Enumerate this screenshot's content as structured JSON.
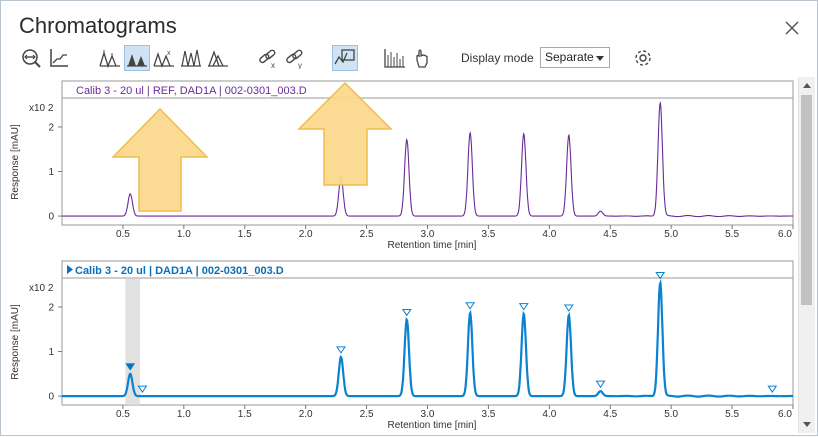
{
  "window": {
    "title": "Chromatograms"
  },
  "toolbar": {
    "icons": [
      "zoom-out-icon",
      "baseline-icon",
      "peaks-icon",
      "peaks-active-icon",
      "peaks-labeled-icon",
      "peaks-tall-icon",
      "peaks-overlay-icon",
      "link-x-icon",
      "link-y-icon",
      "compare-icon",
      "spectrum-icon",
      "hand-pointer-icon",
      "settings-icon"
    ],
    "display_mode_label": "Display mode",
    "display_mode_value": "Separate"
  },
  "colors": {
    "purple_trace": "#6a2a9a",
    "blue_trace": "#0a82d0",
    "arrow_fill": "#fbd98a",
    "arrow_stroke": "#f0b73c"
  },
  "chart_data": [
    {
      "type": "line",
      "title": "Calib 3 - 20 ul | REF, DAD1A | 002-0301_003.D",
      "xlabel": "Retention time [min]",
      "ylabel": "Response [mAU]",
      "multiplier": "x10 2",
      "x_ticks": [
        "0.5",
        "1.0",
        "1.5",
        "2.0",
        "2.5",
        "3.0",
        "3.5",
        "4.0",
        "4.5",
        "5.0",
        "5.5",
        "6.0"
      ],
      "y_ticks": [
        "0",
        "1",
        "2"
      ],
      "xlim": [
        0.0,
        6.0
      ],
      "ylim": [
        -0.2,
        2.65
      ],
      "peaks": [
        {
          "rt": 0.56,
          "height": 0.5
        },
        {
          "rt": 2.29,
          "height": 0.88
        },
        {
          "rt": 2.83,
          "height": 1.72
        },
        {
          "rt": 3.35,
          "height": 1.87
        },
        {
          "rt": 3.79,
          "height": 1.85
        },
        {
          "rt": 4.16,
          "height": 1.82
        },
        {
          "rt": 4.42,
          "height": 0.11
        },
        {
          "rt": 4.91,
          "height": 2.55
        }
      ]
    },
    {
      "type": "line",
      "title": "Calib 3 - 20 ul | DAD1A | 002-0301_003.D",
      "xlabel": "Retention time [min]",
      "ylabel": "Response [mAU]",
      "multiplier": "x10 2",
      "x_ticks": [
        "0.5",
        "1.0",
        "1.5",
        "2.0",
        "2.5",
        "3.0",
        "3.5",
        "4.0",
        "4.5",
        "5.0",
        "5.5",
        "6.0"
      ],
      "y_ticks": [
        "0",
        "1",
        "2"
      ],
      "xlim": [
        0.0,
        6.0
      ],
      "ylim": [
        -0.2,
        2.65
      ],
      "selection_rt": [
        0.52,
        0.64
      ],
      "peaks": [
        {
          "rt": 0.56,
          "height": 0.5
        },
        {
          "rt": 2.29,
          "height": 0.88
        },
        {
          "rt": 2.83,
          "height": 1.72
        },
        {
          "rt": 3.35,
          "height": 1.87
        },
        {
          "rt": 3.79,
          "height": 1.85
        },
        {
          "rt": 4.16,
          "height": 1.82
        },
        {
          "rt": 4.42,
          "height": 0.11
        },
        {
          "rt": 4.91,
          "height": 2.55
        }
      ],
      "markers": [
        0.56,
        0.66,
        2.29,
        2.83,
        3.35,
        3.79,
        4.16,
        4.42,
        4.91,
        5.83
      ]
    }
  ]
}
